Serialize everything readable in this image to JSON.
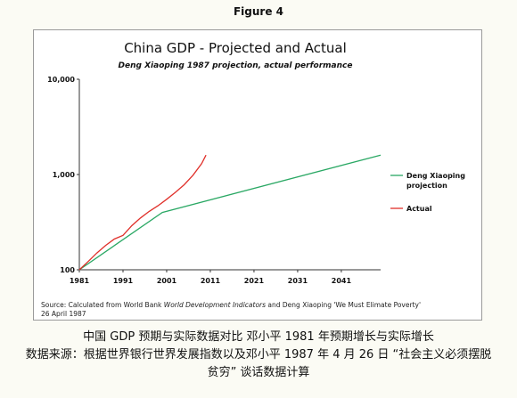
{
  "figure_label": "Figure 4",
  "chart_data": {
    "type": "line",
    "title": "China GDP - Projected and Actual",
    "subtitle": "Deng Xiaoping 1987 projection, actual performance",
    "xlabel": "",
    "ylabel": "",
    "xlim": [
      1981,
      2050
    ],
    "ylim": [
      100,
      10000
    ],
    "yscale": "log",
    "x_ticks": [
      "1981",
      "1991",
      "2001",
      "2011",
      "2021",
      "2031",
      "2041"
    ],
    "x_tick_values": [
      1981,
      1991,
      2001,
      2011,
      2021,
      2031,
      2041
    ],
    "y_ticks": [
      "100",
      "1,000",
      "10,000"
    ],
    "y_tick_values": [
      100,
      1000,
      10000
    ],
    "grid": false,
    "legend_position": "right",
    "series": [
      {
        "name": "Deng Xiaoping projection",
        "color": "#2aa864",
        "x": [
          1981,
          2000,
          2050
        ],
        "y": [
          100,
          400,
          1600
        ]
      },
      {
        "name": "Actual",
        "color": "#e0302a",
        "x": [
          1981,
          1983,
          1985,
          1987,
          1989,
          1991,
          1993,
          1995,
          1997,
          1999,
          2001,
          2003,
          2005,
          2007,
          2009,
          2010
        ],
        "y": [
          100,
          122,
          150,
          180,
          210,
          230,
          290,
          350,
          410,
          470,
          550,
          650,
          780,
          980,
          1300,
          1600
        ]
      }
    ],
    "source_note": {
      "line1_before": "Source: Calculated from World Bank ",
      "line1_italic": "World Development Indicators",
      "line1_after": " and Deng Xiaoping 'We Must Elimate Poverty'",
      "line2": "26 April 1987"
    }
  },
  "caption": {
    "line1": "中国 GDP 预期与实际数据对比 邓小平 1981 年预期增长与实际增长",
    "line2": "数据来源：根据世界银行世界发展指数以及邓小平 1987 年 4 月 26 日 “社会主义必须摆脱",
    "line3": "贫穷” 谈话数据计算"
  }
}
